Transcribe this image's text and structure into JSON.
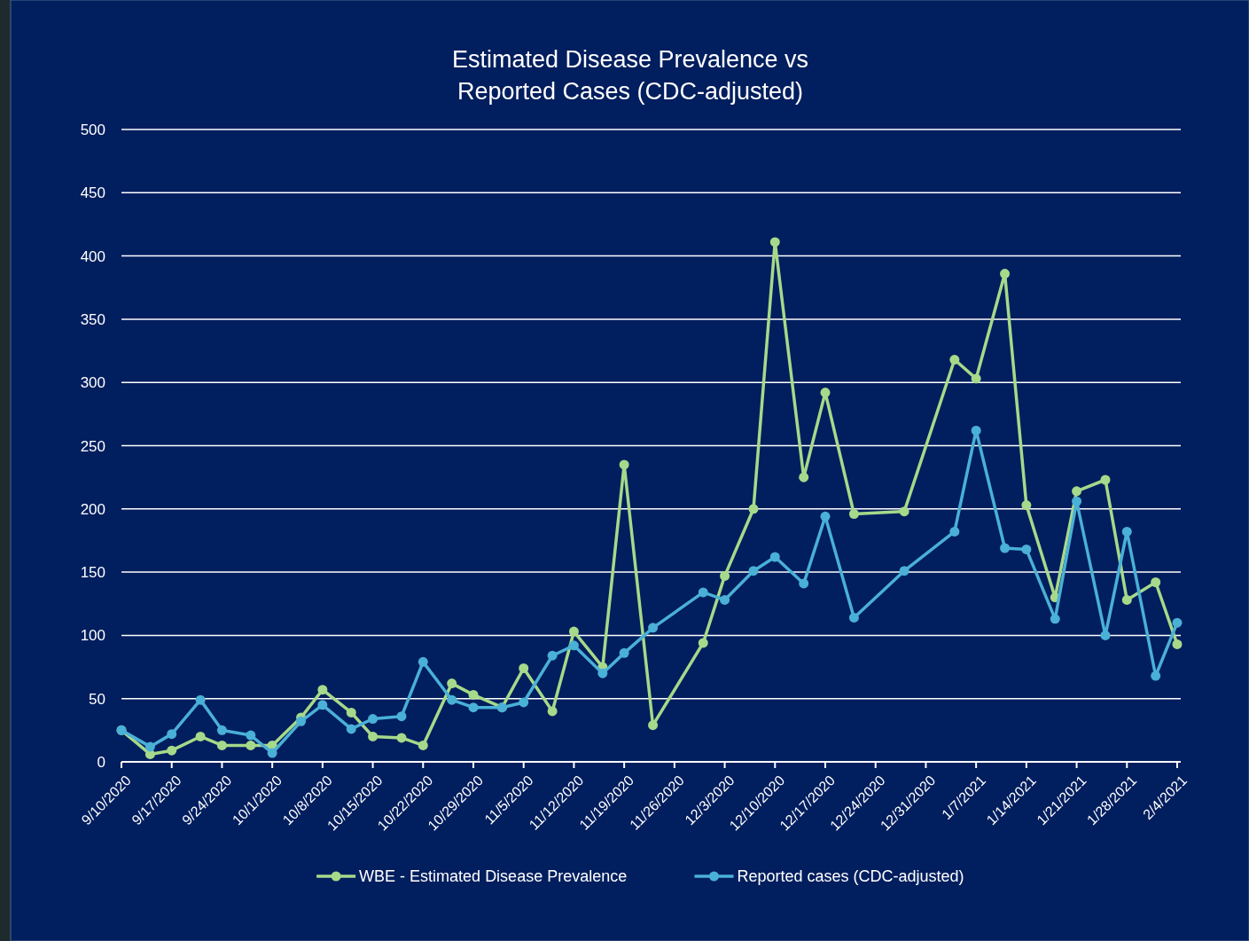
{
  "chart_data": {
    "type": "line",
    "title": "Estimated Disease Prevalence vs\nReported Cases (CDC-adjusted)",
    "x": [
      "2020-09-10",
      "2020-09-14",
      "2020-09-17",
      "2020-09-21",
      "2020-09-24",
      "2020-09-28",
      "2020-10-01",
      "2020-10-05",
      "2020-10-08",
      "2020-10-12",
      "2020-10-15",
      "2020-10-19",
      "2020-10-22",
      "2020-10-26",
      "2020-10-29",
      "2020-11-02",
      "2020-11-05",
      "2020-11-09",
      "2020-11-12",
      "2020-11-16",
      "2020-11-19",
      "2020-11-23",
      "2020-11-30",
      "2020-12-03",
      "2020-12-07",
      "2020-12-10",
      "2020-12-14",
      "2020-12-17",
      "2020-12-21",
      "2020-12-28",
      "2021-01-04",
      "2021-01-07",
      "2021-01-11",
      "2021-01-14",
      "2021-01-18",
      "2021-01-21",
      "2021-01-25",
      "2021-01-28",
      "2021-02-01",
      "2021-02-04"
    ],
    "series": [
      {
        "name": "WBE - Estimated Disease Prevalence",
        "color": "#a6d98a",
        "values": [
          25,
          6,
          9,
          20,
          13,
          13,
          13,
          35,
          57,
          39,
          20,
          19,
          13,
          62,
          53,
          43,
          74,
          40,
          103,
          75,
          235,
          29,
          94,
          147,
          200,
          411,
          225,
          292,
          196,
          198,
          318,
          303,
          386,
          203,
          130,
          214,
          223,
          128,
          142,
          93
        ]
      },
      {
        "name": "Reported cases (CDC-adjusted)",
        "color": "#4ab0d6",
        "values": [
          25,
          12,
          22,
          49,
          25,
          21,
          7,
          32,
          45,
          26,
          34,
          36,
          79,
          49,
          43,
          43,
          47,
          84,
          92,
          70,
          86,
          106,
          134,
          128,
          151,
          162,
          141,
          194,
          114,
          151,
          182,
          262,
          169,
          168,
          113,
          206,
          100,
          182,
          68,
          110
        ]
      }
    ],
    "xlim": [
      "2020-09-10",
      "2021-02-04"
    ],
    "xticks": [
      {
        "value": "2020-09-10",
        "label": "9/10/2020"
      },
      {
        "value": "2020-09-17",
        "label": "9/17/2020"
      },
      {
        "value": "2020-09-24",
        "label": "9/24/2020"
      },
      {
        "value": "2020-10-01",
        "label": "10/1/2020"
      },
      {
        "value": "2020-10-08",
        "label": "10/8/2020"
      },
      {
        "value": "2020-10-15",
        "label": "10/15/2020"
      },
      {
        "value": "2020-10-22",
        "label": "10/22/2020"
      },
      {
        "value": "2020-10-29",
        "label": "10/29/2020"
      },
      {
        "value": "2020-11-05",
        "label": "11/5/2020"
      },
      {
        "value": "2020-11-12",
        "label": "11/12/2020"
      },
      {
        "value": "2020-11-19",
        "label": "11/19/2020"
      },
      {
        "value": "2020-11-26",
        "label": "11/26/2020"
      },
      {
        "value": "2020-12-03",
        "label": "12/3/2020"
      },
      {
        "value": "2020-12-10",
        "label": "12/10/2020"
      },
      {
        "value": "2020-12-17",
        "label": "12/17/2020"
      },
      {
        "value": "2020-12-24",
        "label": "12/24/2020"
      },
      {
        "value": "2020-12-31",
        "label": "12/31/2020"
      },
      {
        "value": "2021-01-07",
        "label": "1/7/2021"
      },
      {
        "value": "2021-01-14",
        "label": "1/14/2021"
      },
      {
        "value": "2021-01-21",
        "label": "1/21/2021"
      },
      {
        "value": "2021-01-28",
        "label": "1/28/2021"
      },
      {
        "value": "2021-02-04",
        "label": "2/4/2021"
      }
    ],
    "ylim": [
      0,
      500
    ],
    "yticks": [
      0,
      50,
      100,
      150,
      200,
      250,
      300,
      350,
      400,
      450,
      500
    ],
    "grid": "y",
    "legend": "bottom",
    "marker": "circle",
    "line_style": "solid"
  }
}
